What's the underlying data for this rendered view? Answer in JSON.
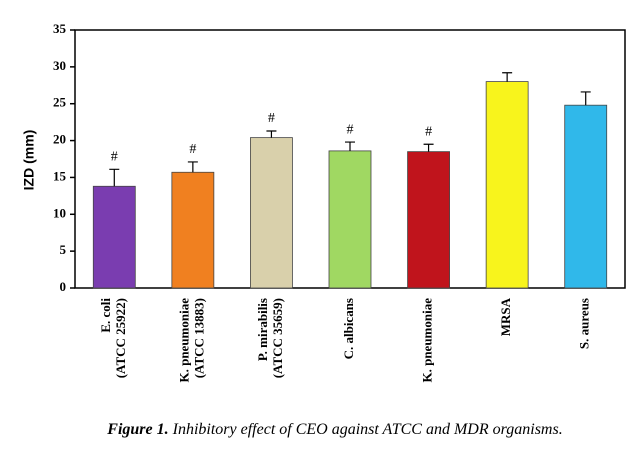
{
  "chart_data": {
    "type": "bar",
    "ylabel": "IZD (mm)",
    "categories": [
      [
        "E. coli",
        "(ATCC 25922)"
      ],
      [
        "K. pneumoniae",
        "(ATCC 13883)"
      ],
      [
        "P. mirabilis",
        "(ATCC 35659)"
      ],
      [
        "C. albicans"
      ],
      [
        "K. pneumoniae"
      ],
      [
        "MRSA"
      ],
      [
        "S. aureus"
      ]
    ],
    "values": [
      13.8,
      15.7,
      20.4,
      18.6,
      18.5,
      28,
      24.8
    ],
    "errors": [
      2.3,
      1.4,
      0.9,
      1.2,
      1.0,
      1.2,
      1.8
    ],
    "colors": [
      "#7a3db0",
      "#f08020",
      "#d9d0ab",
      "#a0d862",
      "#c0141c",
      "#f8f41c",
      "#30b8ea"
    ],
    "annotations": [
      "#",
      "#",
      "#",
      "#",
      "#",
      null,
      null
    ],
    "ylim": [
      0,
      35
    ],
    "yticks": [
      0,
      5,
      10,
      15,
      20,
      25,
      30,
      35
    ]
  },
  "caption": {
    "label": "Figure 1.",
    "text": "Inhibitory effect of CEO against ATCC and MDR organisms."
  }
}
